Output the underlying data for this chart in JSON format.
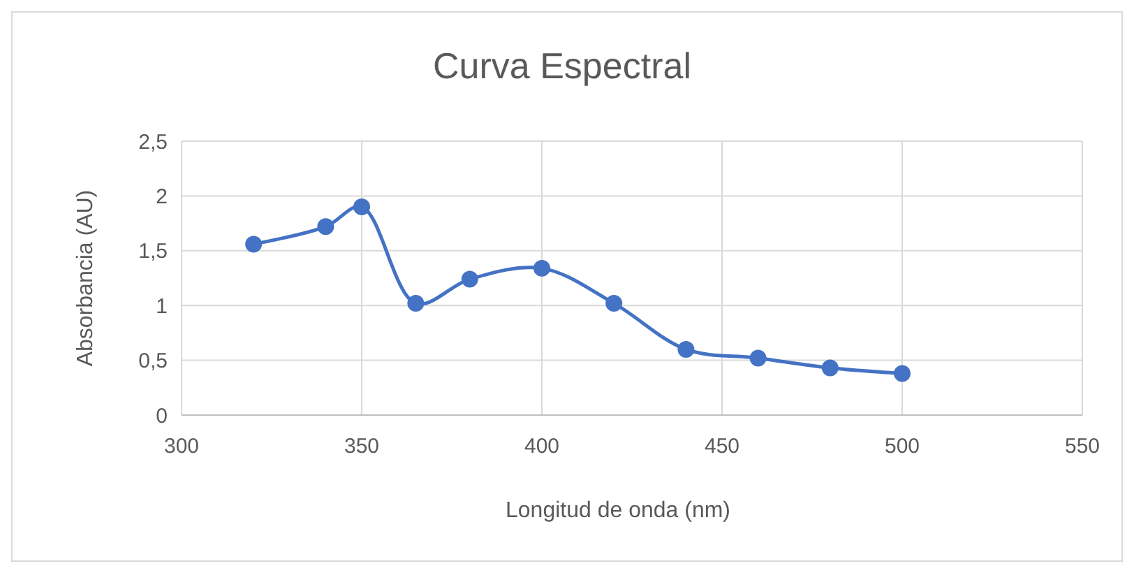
{
  "chart_data": {
    "type": "line",
    "title": "Curva Espectral",
    "xlabel": "Longitud de onda (nm)",
    "ylabel": "Absorbancia (AU)",
    "x": [
      320,
      340,
      350,
      365,
      380,
      400,
      420,
      440,
      460,
      480,
      500
    ],
    "series": [
      {
        "color": "#4472c4",
        "values": [
          1.56,
          1.72,
          1.9,
          1.02,
          1.24,
          1.34,
          1.02,
          0.6,
          0.52,
          0.43,
          0.38
        ]
      }
    ],
    "xlim": [
      300,
      550
    ],
    "xticks": [
      300,
      350,
      400,
      450,
      500,
      550
    ],
    "ylim": [
      0,
      2.5
    ],
    "yticks": [
      0,
      {
        "value": 0.5,
        "label": "0,5"
      },
      1,
      {
        "value": 1.5,
        "label": "1,5"
      },
      2,
      {
        "value": 2.5,
        "label": "2,5"
      }
    ],
    "grid": true,
    "marker": "circle",
    "line_style": "solid"
  }
}
